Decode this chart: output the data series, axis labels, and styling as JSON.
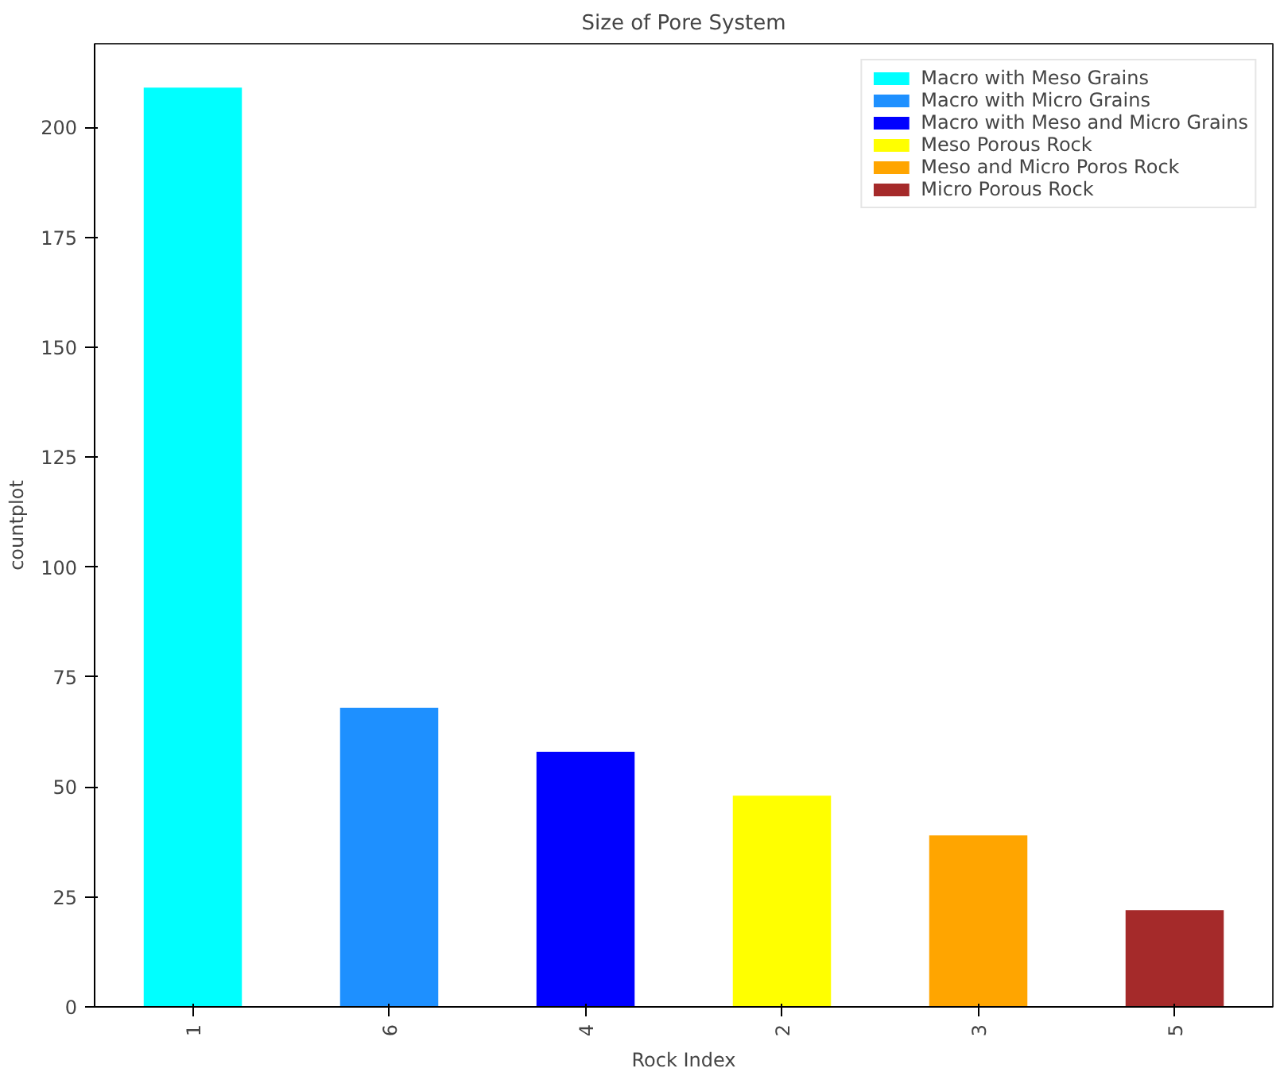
{
  "chart_data": {
    "type": "bar",
    "title": "Size of Pore System",
    "xlabel": "Rock Index",
    "ylabel": "countplot",
    "categories": [
      "1",
      "6",
      "4",
      "2",
      "3",
      "5"
    ],
    "series": [
      {
        "name": "Macro with Meso Grains",
        "color": "#00ffff",
        "values": [
          209,
          null,
          null,
          null,
          null,
          null
        ]
      },
      {
        "name": "Macro with Micro Grains",
        "color": "#1e90ff",
        "values": [
          null,
          68,
          null,
          null,
          null,
          null
        ]
      },
      {
        "name": "Macro with Meso and Micro Grains",
        "color": "#0000ff",
        "values": [
          null,
          null,
          58,
          null,
          null,
          null
        ]
      },
      {
        "name": "Meso Porous Rock",
        "color": "#ffff00",
        "values": [
          null,
          null,
          null,
          48,
          null,
          null
        ]
      },
      {
        "name": "Meso and Micro Poros Rock",
        "color": "#ffa500",
        "values": [
          null,
          null,
          null,
          null,
          39,
          null
        ]
      },
      {
        "name": "Micro Porous Rock",
        "color": "#a52a2a",
        "values": [
          null,
          null,
          null,
          null,
          null,
          22
        ]
      }
    ],
    "ylim": [
      0,
      219
    ],
    "yticks": [
      0,
      25,
      50,
      75,
      100,
      125,
      150,
      175,
      200
    ],
    "grid": false,
    "legend": "top right"
  }
}
